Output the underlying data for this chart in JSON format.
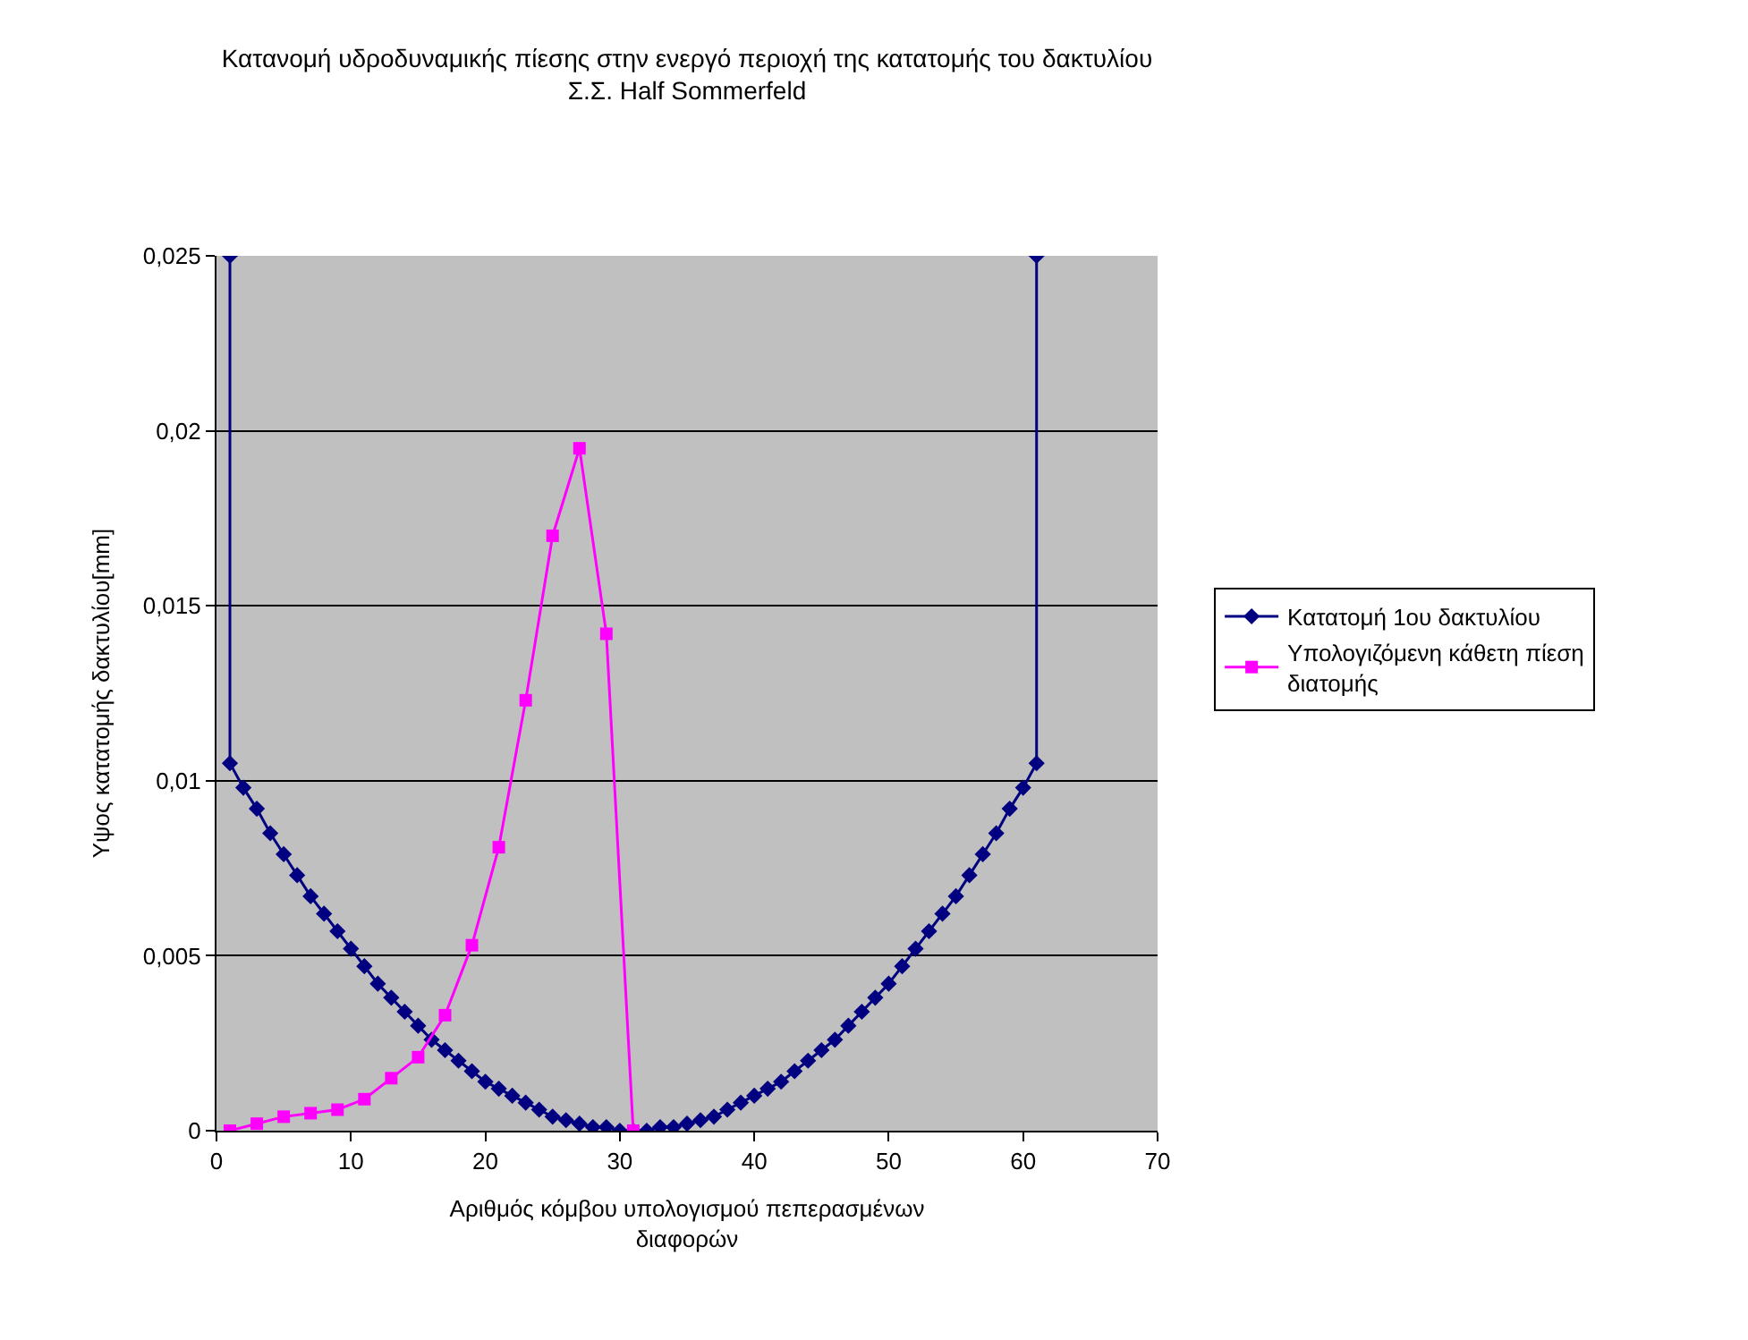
{
  "chart_data": {
    "type": "line",
    "title": "Κατανομή υδροδυναμικής πίεσης στην ενεργό περιοχή της κατατομής του δακτυλίου\nΣ.Σ. Half Sommerfeld",
    "xlabel": "Αριθμός κόμβου υπολογισμού πεπερασμένων διαφορών",
    "ylabel": "Υψος κατατομής δακτυλίου[mm]",
    "xlim": [
      0,
      70
    ],
    "xticks": [
      0,
      10,
      20,
      30,
      40,
      50,
      60,
      70
    ],
    "ylim": [
      0,
      0.025
    ],
    "yticks": [
      {
        "value": 0,
        "label": "0"
      },
      {
        "value": 0.005,
        "label": "0,005"
      },
      {
        "value": 0.01,
        "label": "0,01"
      },
      {
        "value": 0.015,
        "label": "0,015"
      },
      {
        "value": 0.02,
        "label": "0,02"
      },
      {
        "value": 0.025,
        "label": "0,025"
      }
    ],
    "grid": "y",
    "legend": "right",
    "line_style": "solid",
    "series": [
      {
        "name": "Κατατομή 1ου δακτυλίου",
        "color": "#000080",
        "marker": "diamond",
        "x": [
          1,
          1,
          2,
          3,
          4,
          5,
          6,
          7,
          8,
          9,
          10,
          11,
          12,
          13,
          14,
          15,
          16,
          17,
          18,
          19,
          20,
          21,
          22,
          23,
          24,
          25,
          26,
          27,
          28,
          29,
          30,
          31,
          32,
          33,
          34,
          35,
          36,
          37,
          38,
          39,
          40,
          41,
          42,
          43,
          44,
          45,
          46,
          47,
          48,
          49,
          50,
          51,
          52,
          53,
          54,
          55,
          56,
          57,
          58,
          59,
          60,
          61,
          61
        ],
        "values": [
          0.025,
          0.0105,
          0.0098,
          0.0092,
          0.0085,
          0.0079,
          0.0073,
          0.0067,
          0.0062,
          0.0057,
          0.0052,
          0.0047,
          0.0042,
          0.0038,
          0.0034,
          0.003,
          0.0026,
          0.0023,
          0.002,
          0.0017,
          0.0014,
          0.0012,
          0.001,
          0.0008,
          0.0006,
          0.0004,
          0.0003,
          0.0002,
          0.0001,
          0.0001,
          0,
          0,
          0,
          0.0001,
          0.0001,
          0.0002,
          0.0003,
          0.0004,
          0.0006,
          0.0008,
          0.001,
          0.0012,
          0.0014,
          0.0017,
          0.002,
          0.0023,
          0.0026,
          0.003,
          0.0034,
          0.0038,
          0.0042,
          0.0047,
          0.0052,
          0.0057,
          0.0062,
          0.0067,
          0.0073,
          0.0079,
          0.0085,
          0.0092,
          0.0098,
          0.0105,
          0.025
        ]
      },
      {
        "name": "Υπολογιζόμενη κάθετη πίεση διατομής",
        "color": "#ff00ff",
        "marker": "square",
        "x": [
          1,
          3,
          5,
          7,
          9,
          11,
          13,
          15,
          17,
          19,
          21,
          23,
          25,
          27,
          29,
          31
        ],
        "values": [
          0,
          0.0002,
          0.0004,
          0.0005,
          0.0006,
          0.0009,
          0.0015,
          0.0021,
          0.0033,
          0.0053,
          0.0081,
          0.0123,
          0.017,
          0.0195,
          0.0142,
          0
        ]
      }
    ]
  }
}
